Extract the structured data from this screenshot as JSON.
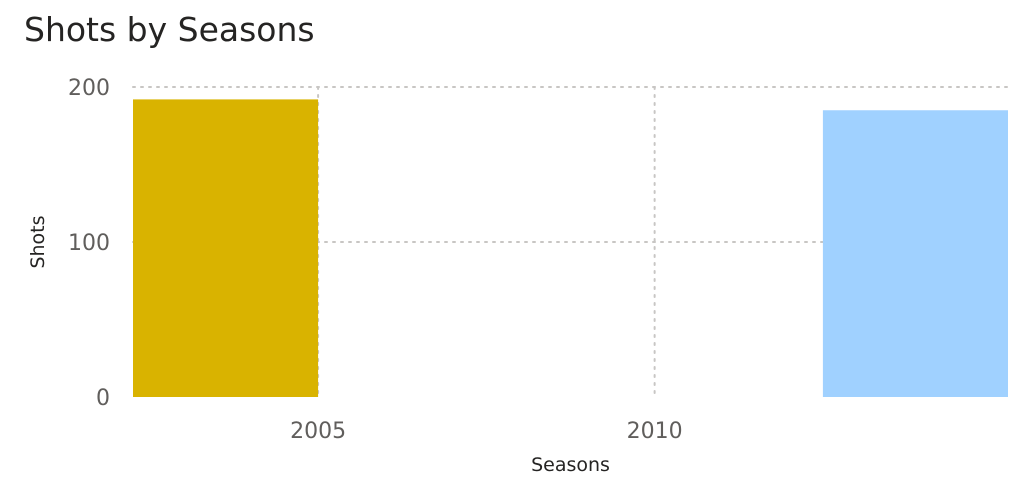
{
  "chart_data": {
    "type": "bar",
    "title": "Shots by Seasons",
    "xlabel": "Seasons",
    "ylabel": "Shots",
    "xlim": [
      2002.25,
      2015.25
    ],
    "ylim": [
      0,
      200
    ],
    "x_ticks": [
      2005,
      2010
    ],
    "y_ticks": [
      0,
      100,
      200
    ],
    "grid": true,
    "series": [
      {
        "points": [
          {
            "x_start": 2002.25,
            "x_end": 2005.0,
            "y": 192,
            "color": "#D9B300"
          },
          {
            "x_start": 2012.5,
            "x_end": 2015.25,
            "y": 185,
            "color": "#A0D1FF"
          }
        ]
      }
    ]
  }
}
